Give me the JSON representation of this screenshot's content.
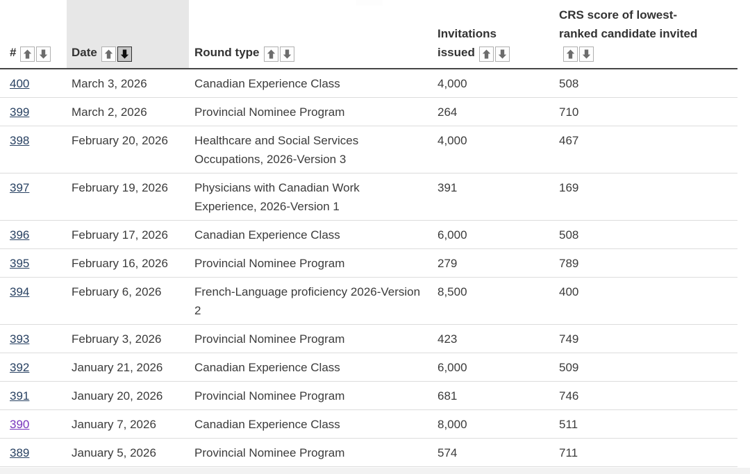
{
  "colors": {
    "link": "#284162",
    "link_visited": "#7834bc",
    "body_text": "#3b3b3b",
    "header_text": "#333333",
    "sorted_column_highlight": "#e7e7e7",
    "sort_button_active_bg": "#c7c7c7",
    "row_divider": "#dcdcdc",
    "header_border": "#444444",
    "bottom_bar": "#f2f2f2"
  },
  "icons": {
    "ascending": "sort-ascending-arrow-up-icon",
    "descending": "sort-descending-arrow-down-icon"
  },
  "table": {
    "columns": [
      {
        "id": "number",
        "label": "#",
        "sortable": true,
        "sort_state": "none",
        "highlighted": false
      },
      {
        "id": "date",
        "label": "Date",
        "sortable": true,
        "sort_state": "descending",
        "highlighted": true
      },
      {
        "id": "round_type",
        "label": "Round type",
        "sortable": true,
        "sort_state": "none",
        "highlighted": false
      },
      {
        "id": "invitations",
        "label": "Invitations issued",
        "sortable": true,
        "sort_state": "none",
        "highlighted": false
      },
      {
        "id": "crs",
        "label": "CRS score of lowest-ranked candidate invited",
        "sortable": true,
        "sort_state": "none",
        "highlighted": false
      }
    ],
    "rows": [
      {
        "number": "400",
        "date": "March 3, 2026",
        "round_type": "Canadian Experience Class",
        "invitations": "4,000",
        "crs": "508",
        "visited": false
      },
      {
        "number": "399",
        "date": "March 2, 2026",
        "round_type": "Provincial Nominee Program",
        "invitations": "264",
        "crs": "710",
        "visited": false
      },
      {
        "number": "398",
        "date": "February 20, 2026",
        "round_type": "Healthcare and Social Services Occupations, 2026-Version 3",
        "invitations": "4,000",
        "crs": "467",
        "visited": false
      },
      {
        "number": "397",
        "date": "February 19, 2026",
        "round_type": "Physicians with Canadian Work Experience, 2026-Version 1",
        "invitations": "391",
        "crs": "169",
        "visited": false
      },
      {
        "number": "396",
        "date": "February 17, 2026",
        "round_type": "Canadian Experience Class",
        "invitations": "6,000",
        "crs": "508",
        "visited": false
      },
      {
        "number": "395",
        "date": "February 16, 2026",
        "round_type": "Provincial Nominee Program",
        "invitations": "279",
        "crs": "789",
        "visited": false
      },
      {
        "number": "394",
        "date": "February 6, 2026",
        "round_type": "French-Language proficiency 2026-Version 2",
        "invitations": "8,500",
        "crs": "400",
        "visited": false
      },
      {
        "number": "393",
        "date": "February 3, 2026",
        "round_type": "Provincial Nominee Program",
        "invitations": "423",
        "crs": "749",
        "visited": false
      },
      {
        "number": "392",
        "date": "January 21, 2026",
        "round_type": "Canadian Experience Class",
        "invitations": "6,000",
        "crs": "509",
        "visited": false
      },
      {
        "number": "391",
        "date": "January 20, 2026",
        "round_type": "Provincial Nominee Program",
        "invitations": "681",
        "crs": "746",
        "visited": false
      },
      {
        "number": "390",
        "date": "January 7, 2026",
        "round_type": "Canadian Experience Class",
        "invitations": "8,000",
        "crs": "511",
        "visited": true
      },
      {
        "number": "389",
        "date": "January 5, 2026",
        "round_type": "Provincial Nominee Program",
        "invitations": "574",
        "crs": "711",
        "visited": false
      }
    ]
  }
}
